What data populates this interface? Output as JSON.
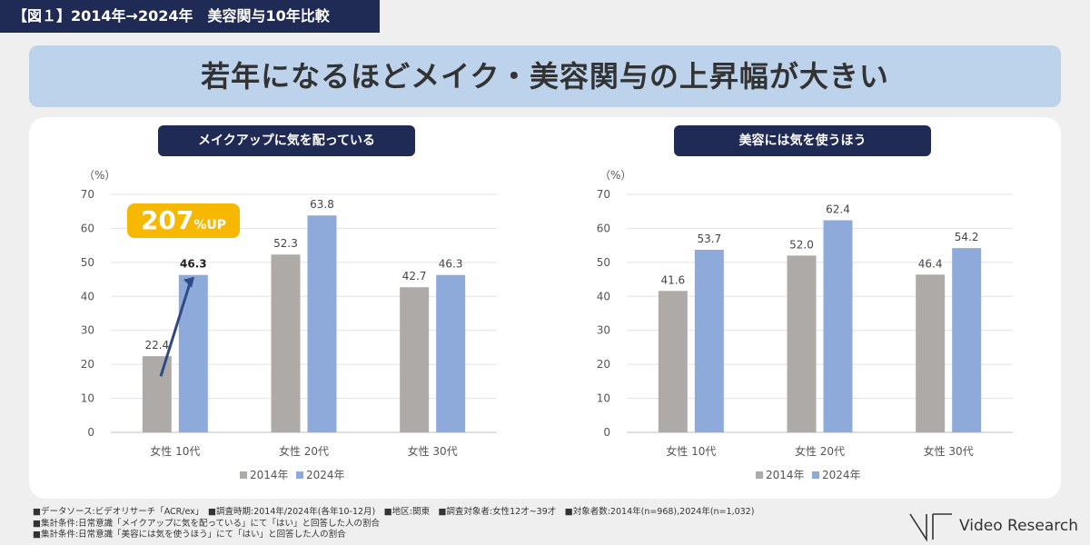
{
  "figure_tag": "【図１】2014年→2024年　美容関与10年比較",
  "headline": "若年になるほどメイク・美容関与の上昇幅が大きい",
  "callout": {
    "number": "207",
    "suffix": "%UP"
  },
  "footer_lines": [
    "■データソース:ビデオリサーチ「ACR/ex」　■調査時期:2014年/2024年(各年10-12月)　■地区:関東　■調査対象者:女性12才~39才　■対象者数:2014年(n=968),2024年(n=1,032)",
    "■集計条件:日常意識「メイクアップに気を配っている」にて「はい」と回答した人の割合",
    "■集計条件:日常意識「美容には気を使うほう」にて「はい」と回答した人の割合"
  ],
  "logo_text": "Video Research",
  "colors": {
    "navy": "#1f2a55",
    "gray_bar": "#aeaaa7",
    "blue_bar": "#8eaadb",
    "callout": "#f6b800",
    "headline_bg": "#bdd3ec"
  },
  "chart_data": [
    {
      "type": "bar",
      "title": "メイクアップに気を配っている",
      "ylabel": "（%）",
      "ylim": [
        0,
        70
      ],
      "yticks": [
        0,
        10,
        20,
        30,
        40,
        50,
        60,
        70
      ],
      "categories": [
        "女性 10代",
        "女性 20代",
        "女性 30代"
      ],
      "series": [
        {
          "name": "2014年",
          "values": [
            22.4,
            52.3,
            42.7
          ]
        },
        {
          "name": "2024年",
          "values": [
            46.3,
            63.8,
            46.3
          ]
        }
      ],
      "grid": true,
      "legend": "bottom"
    },
    {
      "type": "bar",
      "title": "美容には気を使うほう",
      "ylabel": "（%）",
      "ylim": [
        0,
        70
      ],
      "yticks": [
        0,
        10,
        20,
        30,
        40,
        50,
        60,
        70
      ],
      "categories": [
        "女性 10代",
        "女性 20代",
        "女性 30代"
      ],
      "series": [
        {
          "name": "2014年",
          "values": [
            41.6,
            52.0,
            46.4
          ]
        },
        {
          "name": "2024年",
          "values": [
            53.7,
            62.4,
            54.2
          ]
        }
      ],
      "grid": true,
      "legend": "bottom"
    }
  ]
}
